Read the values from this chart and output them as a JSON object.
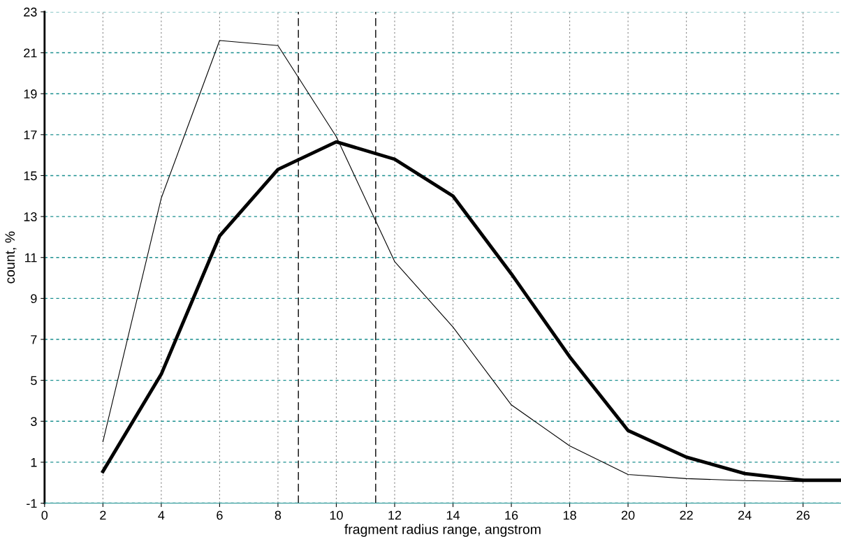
{
  "chart_data": {
    "type": "line",
    "xlabel": "fragment radius range, angstrom",
    "ylabel": "count, %",
    "series": [
      {
        "color": "#000000",
        "x": [
          2,
          4,
          6,
          8,
          10,
          12,
          14,
          16,
          18,
          20,
          22,
          24,
          26
        ],
        "values": [
          2.0,
          13.9,
          21.6,
          21.35,
          16.9,
          10.8,
          7.6,
          3.8,
          1.8,
          0.4,
          0.2,
          0.1,
          0.05
        ]
      },
      {
        "color": "#000000",
        "x": [
          2,
          4,
          6,
          8,
          10,
          12,
          14,
          16,
          18,
          20,
          22,
          24,
          26,
          27.3
        ],
        "values": [
          0.55,
          5.3,
          12.05,
          15.3,
          16.65,
          15.8,
          14.0,
          10.2,
          6.15,
          2.55,
          1.25,
          0.45,
          0.12,
          0.12
        ]
      }
    ],
    "xlim": [
      0,
      27.3
    ],
    "xticks": [
      0,
      2,
      4,
      6,
      8,
      10,
      12,
      14,
      16,
      18,
      20,
      22,
      24,
      26
    ],
    "ylim": [
      -1,
      23
    ],
    "yticks": [
      -1,
      1,
      3,
      5,
      7,
      9,
      11,
      13,
      15,
      17,
      19,
      21,
      23
    ],
    "ref_lines": [
      {
        "axis": "x",
        "value": 8.7,
        "color": "#000000",
        "line_style": "dashed"
      },
      {
        "axis": "x",
        "value": 11.35,
        "color": "#000000",
        "line_style": "dashed"
      }
    ],
    "grid": true,
    "legend": false,
    "marker": "none",
    "line_style": "solid"
  }
}
